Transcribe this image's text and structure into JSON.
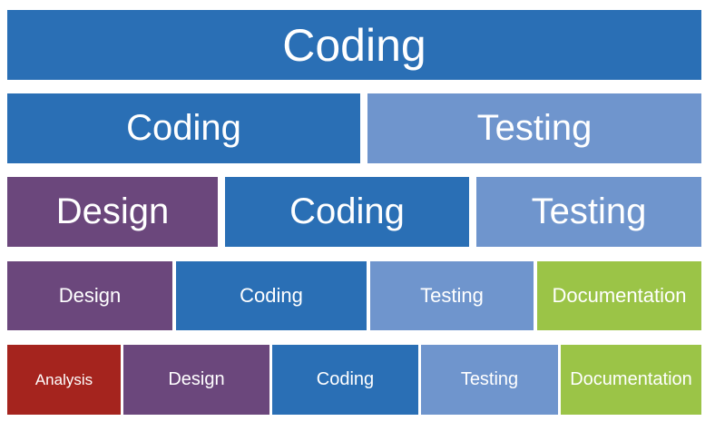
{
  "rows": [
    {
      "blocks": [
        {
          "label": "Coding",
          "color": "#2a6fb5"
        }
      ]
    },
    {
      "blocks": [
        {
          "label": "Coding",
          "color": "#2a6fb5"
        },
        {
          "label": "Testing",
          "color": "#6f95cd"
        }
      ]
    },
    {
      "blocks": [
        {
          "label": "Design",
          "color": "#6b477c"
        },
        {
          "label": "Coding",
          "color": "#2a6fb5"
        },
        {
          "label": "Testing",
          "color": "#6f95cd"
        }
      ]
    },
    {
      "blocks": [
        {
          "label": "Design",
          "color": "#6b477c"
        },
        {
          "label": "Coding",
          "color": "#2a6fb5"
        },
        {
          "label": "Testing",
          "color": "#6f95cd"
        },
        {
          "label": "Documentation",
          "color": "#9bc447"
        }
      ]
    },
    {
      "blocks": [
        {
          "label": "Analysis",
          "color": "#a5241e"
        },
        {
          "label": "Design",
          "color": "#6b477c"
        },
        {
          "label": "Coding",
          "color": "#2a6fb5"
        },
        {
          "label": "Testing",
          "color": "#6f95cd"
        },
        {
          "label": "Documentation",
          "color": "#9bc447"
        }
      ]
    }
  ]
}
